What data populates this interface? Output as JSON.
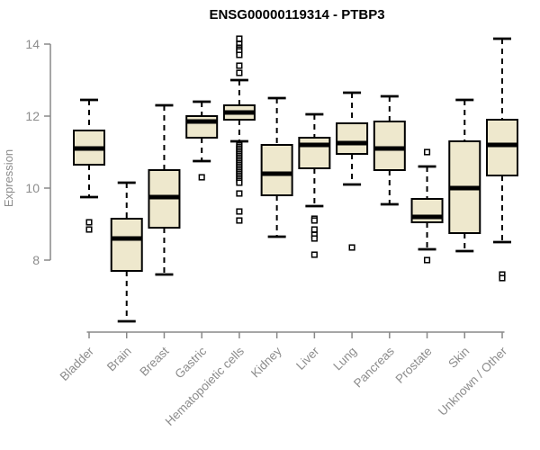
{
  "chart_data": {
    "type": "boxplot",
    "title": "ENSG00000119314 - PTBP3",
    "ylabel": "Expression",
    "xlabel": "",
    "ylim": [
      6.0,
      14.3
    ],
    "yticks": [
      8,
      10,
      12,
      14
    ],
    "grid": false,
    "legend": "none",
    "categories": [
      "Bladder",
      "Brain",
      "Breast",
      "Gastric",
      "Hematopoietic cells",
      "Kidney",
      "Liver",
      "Lung",
      "Pancreas",
      "Prostate",
      "Skin",
      "Unknown / Other"
    ],
    "series": [
      {
        "name": "Bladder",
        "low": 9.75,
        "q1": 10.65,
        "median": 11.1,
        "q3": 11.6,
        "high": 12.45,
        "outliers": [
          9.05,
          8.85
        ]
      },
      {
        "name": "Brain",
        "low": 6.3,
        "q1": 7.7,
        "median": 8.6,
        "q3": 9.15,
        "high": 10.15,
        "outliers": []
      },
      {
        "name": "Breast",
        "low": 7.6,
        "q1": 8.9,
        "median": 9.75,
        "q3": 10.5,
        "high": 12.3,
        "outliers": []
      },
      {
        "name": "Gastric",
        "low": 10.75,
        "q1": 11.4,
        "median": 11.85,
        "q3": 12.0,
        "high": 12.4,
        "outliers": [
          10.3
        ]
      },
      {
        "name": "Hematopoietic cells",
        "low": 11.3,
        "q1": 11.9,
        "median": 12.1,
        "q3": 12.3,
        "high": 13.0,
        "outliers": [
          14.15,
          14.0,
          13.9,
          13.85,
          13.8,
          13.7,
          13.4,
          13.2,
          11.2,
          11.15,
          11.1,
          11.05,
          11.0,
          10.95,
          10.9,
          10.85,
          10.8,
          10.75,
          10.7,
          10.65,
          10.6,
          10.55,
          10.5,
          10.45,
          10.4,
          10.35,
          10.3,
          10.25,
          10.2,
          10.15,
          9.85,
          9.35,
          9.1
        ]
      },
      {
        "name": "Kidney",
        "low": 8.65,
        "q1": 9.8,
        "median": 10.4,
        "q3": 11.2,
        "high": 12.5,
        "outliers": []
      },
      {
        "name": "Liver",
        "low": 9.5,
        "q1": 10.55,
        "median": 11.2,
        "q3": 11.4,
        "high": 12.05,
        "outliers": [
          9.15,
          9.1,
          8.85,
          8.7,
          8.6,
          8.15
        ]
      },
      {
        "name": "Lung",
        "low": 10.1,
        "q1": 10.95,
        "median": 11.25,
        "q3": 11.8,
        "high": 12.65,
        "outliers": [
          8.35
        ]
      },
      {
        "name": "Pancreas",
        "low": 9.55,
        "q1": 10.5,
        "median": 11.1,
        "q3": 11.85,
        "high": 12.55,
        "outliers": []
      },
      {
        "name": "Prostate",
        "low": 8.3,
        "q1": 9.05,
        "median": 9.2,
        "q3": 9.7,
        "high": 10.6,
        "outliers": [
          11.0,
          8.0
        ]
      },
      {
        "name": "Skin",
        "low": 8.25,
        "q1": 8.75,
        "median": 10.0,
        "q3": 11.3,
        "high": 12.45,
        "outliers": []
      },
      {
        "name": "Unknown / Other",
        "low": 8.5,
        "q1": 10.35,
        "median": 11.2,
        "q3": 11.9,
        "high": 14.15,
        "outliers": [
          7.6,
          7.5
        ]
      }
    ],
    "colors": {
      "box_fill": "#EEE8CD",
      "box_stroke": "#000000",
      "median": "#000000",
      "whisker": "#000000",
      "axis": "#888888",
      "tick_label": "#8c8c8c",
      "title": "#000000",
      "background": "#ffffff"
    }
  }
}
